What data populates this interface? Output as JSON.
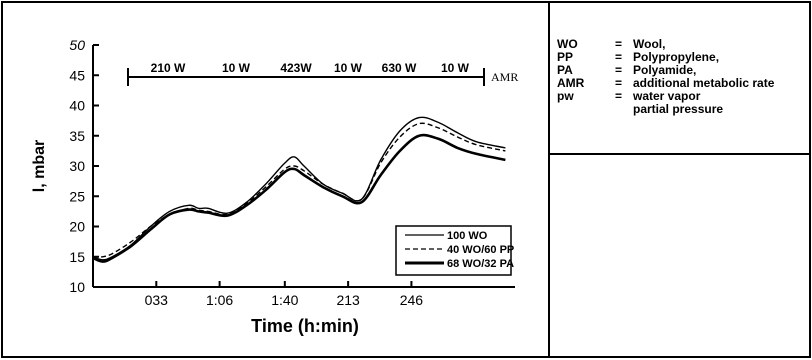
{
  "chart_data": {
    "type": "line",
    "xlabel": "Time (h:min)",
    "ylabel": "l, mbar",
    "ylim": [
      10,
      50
    ],
    "xlim": [
      0,
      220
    ],
    "yticks": [
      10,
      15,
      20,
      25,
      30,
      35,
      40,
      45,
      50
    ],
    "ytick_labels": [
      "10",
      "15",
      "20",
      "25",
      "30",
      "35",
      "40",
      "45",
      "50"
    ],
    "xticks": [
      {
        "value": 33,
        "label": "033"
      },
      {
        "value": 66,
        "label": "1:06"
      },
      {
        "value": 100,
        "label": "1:40"
      },
      {
        "value": 133,
        "label": "213"
      },
      {
        "value": 166,
        "label": "246"
      }
    ],
    "grid": false,
    "legend_position": "bottom-right",
    "x": [
      0,
      5,
      10,
      20,
      30,
      40,
      50,
      55,
      60,
      70,
      80,
      90,
      100,
      105,
      110,
      120,
      130,
      140,
      150,
      160,
      170,
      180,
      190,
      200,
      215
    ],
    "series": [
      {
        "name": "100 WO",
        "values": [
          15.0,
          14.5,
          15.0,
          17.0,
          20.0,
          22.5,
          23.5,
          23.0,
          23.0,
          22.2,
          24.0,
          27.0,
          30.5,
          31.5,
          30.0,
          27.0,
          25.5,
          24.5,
          31.0,
          35.8,
          38.0,
          37.2,
          35.5,
          34.0,
          33.0
        ]
      },
      {
        "name": "40 WO/60 PP",
        "values": [
          15.0,
          15.0,
          15.5,
          17.5,
          20.0,
          22.0,
          23.0,
          22.7,
          22.5,
          22.0,
          23.8,
          26.5,
          29.5,
          30.0,
          29.2,
          27.0,
          25.5,
          24.5,
          30.5,
          34.8,
          37.0,
          36.3,
          34.8,
          33.5,
          32.5
        ]
      },
      {
        "name": "68 WO/32 PA",
        "values": [
          14.8,
          14.2,
          14.8,
          16.8,
          19.5,
          22.0,
          22.8,
          22.5,
          22.3,
          21.8,
          23.5,
          26.0,
          29.0,
          29.5,
          28.5,
          26.5,
          25.0,
          24.0,
          28.5,
          32.5,
          35.0,
          34.5,
          33.0,
          32.0,
          31.0
        ]
      }
    ],
    "annotations": {
      "amr_label": "AMR",
      "amr_segments": [
        "210 W",
        "10 W",
        "423W",
        "10 W",
        "630 W",
        "10 W"
      ]
    }
  },
  "key": [
    {
      "abbr": "WO",
      "sep": "=",
      "text": "Wool,"
    },
    {
      "abbr": "PP",
      "sep": "=",
      "text": "Polypropylene,"
    },
    {
      "abbr": "PA",
      "sep": "=",
      "text": "Polyamide,"
    },
    {
      "abbr": "AMR",
      "sep": "=",
      "text": "additional metabolic rate"
    },
    {
      "abbr": "pw",
      "sep": "=",
      "text": "water vapor"
    },
    {
      "abbr": "",
      "sep": "",
      "text": "partial pressure"
    }
  ]
}
